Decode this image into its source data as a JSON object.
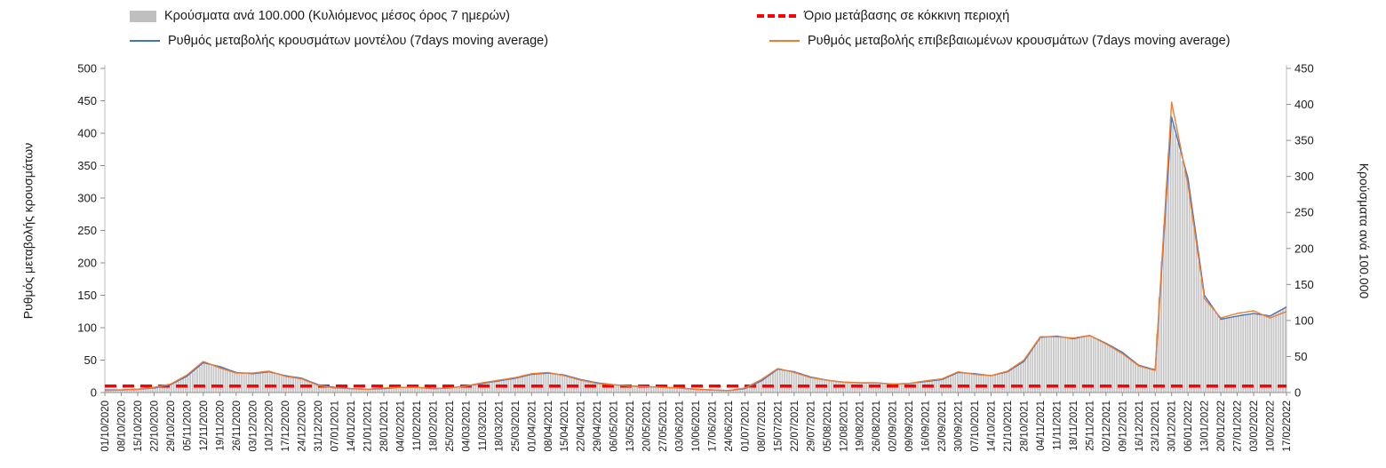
{
  "legend": {
    "items": [
      {
        "label": "Κρούσματα ανά 100.000 (Κυλιόμενος μέσος όρος 7 ημερών)",
        "swatch": "bar",
        "color": "#bfbfbf"
      },
      {
        "label": "Όριο μετάβασης σε κόκκινη περιοχή",
        "swatch": "dashed-line",
        "color": "#ff0000"
      },
      {
        "label": "Ρυθμός μεταβολής κρουσμάτων μοντέλου (7days moving average)",
        "swatch": "line",
        "color": "#4472c4"
      },
      {
        "label": "Ρυθμός μεταβολής επιβεβαιωμένων κρουσμάτων (7days moving average)",
        "swatch": "line",
        "color": "#ed7d31"
      }
    ]
  },
  "axes": {
    "left_label": "Ρυθμός μεταβολής κρουσμάτων",
    "right_label": "Κρούσματα ανά 100.000"
  },
  "chart_data": {
    "type": "bar",
    "subtype": "combo-bar-line",
    "grid": false,
    "legend_position": "top",
    "x": [
      "01/10/2020",
      "08/10/2020",
      "15/10/2020",
      "22/10/2020",
      "29/10/2020",
      "05/11/2020",
      "12/11/2020",
      "19/11/2020",
      "26/11/2020",
      "03/12/2020",
      "10/12/2020",
      "17/12/2020",
      "24/12/2020",
      "31/12/2020",
      "07/01/2021",
      "14/01/2021",
      "21/01/2021",
      "28/01/2021",
      "04/02/2021",
      "11/02/2021",
      "18/02/2021",
      "25/02/2021",
      "04/03/2021",
      "11/03/2021",
      "18/03/2021",
      "25/03/2021",
      "01/04/2021",
      "08/04/2021",
      "15/04/2021",
      "22/04/2021",
      "29/04/2021",
      "06/05/2021",
      "13/05/2021",
      "20/05/2021",
      "27/05/2021",
      "03/06/2021",
      "10/06/2021",
      "17/06/2021",
      "24/06/2021",
      "01/07/2021",
      "08/07/2021",
      "15/07/2021",
      "22/07/2021",
      "29/07/2021",
      "05/08/2021",
      "12/08/2021",
      "19/08/2021",
      "26/08/2021",
      "02/09/2021",
      "09/09/2021",
      "16/09/2021",
      "23/09/2021",
      "30/09/2021",
      "07/10/2021",
      "14/10/2021",
      "21/10/2021",
      "28/10/2021",
      "04/11/2021",
      "11/11/2021",
      "18/11/2021",
      "25/11/2021",
      "02/12/2021",
      "09/12/2021",
      "16/12/2021",
      "23/12/2021",
      "30/12/2021",
      "06/01/2022",
      "13/01/2022",
      "20/01/2022",
      "27/01/2022",
      "03/02/2022",
      "10/02/2022",
      "17/02/2022"
    ],
    "left_axis": {
      "min": 0,
      "max": 500,
      "ticks": [
        0,
        50,
        100,
        150,
        200,
        250,
        300,
        350,
        400,
        450,
        500
      ]
    },
    "right_axis": {
      "min": 0,
      "max": 450,
      "ticks": [
        0,
        50,
        100,
        150,
        200,
        250,
        300,
        350,
        400,
        450
      ]
    },
    "series": {
      "bars": {
        "name": "Κρούσματα ανά 100.000 (Κυλιόμενος μέσος όρος 7 ημερών)",
        "type": "bar",
        "axis": "right",
        "color": "#c6c6c6",
        "values": [
          4,
          4,
          5,
          6,
          11,
          22,
          41,
          36,
          28,
          26,
          29,
          23,
          20,
          11,
          7,
          5,
          5,
          5,
          7,
          7,
          5,
          6,
          9,
          13,
          16,
          20,
          25,
          27,
          24,
          18,
          14,
          11,
          9,
          8,
          7,
          6,
          5,
          4,
          3,
          5,
          16,
          32,
          29,
          22,
          17,
          14,
          14,
          14,
          12,
          13,
          15,
          18,
          28,
          26,
          23,
          29,
          43,
          77,
          78,
          75,
          79,
          68,
          56,
          38,
          32,
          383,
          297,
          135,
          102,
          106,
          110,
          106,
          119
        ]
      },
      "model": {
        "name": "Ρυθμός μεταβολής κρουσμάτων μοντέλου (7days moving average)",
        "type": "line",
        "axis": "left",
        "color": "#4472c4",
        "values": [
          4,
          4,
          5,
          7,
          12,
          25,
          46,
          40,
          31,
          29,
          32,
          26,
          22,
          12,
          8,
          6,
          5,
          6,
          8,
          8,
          6,
          7,
          10,
          14,
          18,
          22,
          28,
          30,
          27,
          20,
          15,
          12,
          10,
          9,
          8,
          7,
          5,
          4,
          3,
          6,
          18,
          36,
          32,
          24,
          19,
          16,
          15,
          15,
          13,
          14,
          17,
          20,
          31,
          29,
          26,
          32,
          48,
          85,
          87,
          83,
          88,
          76,
          62,
          42,
          35,
          425,
          330,
          150,
          113,
          118,
          122,
          118,
          132
        ]
      },
      "confirmed": {
        "name": "Ρυθμός μεταβολής επιβεβαιωμένων κρουσμάτων (7days moving average)",
        "type": "line",
        "axis": "left",
        "color": "#ed7d31",
        "values": [
          3,
          4,
          5,
          8,
          13,
          27,
          48,
          38,
          30,
          30,
          33,
          25,
          21,
          11,
          7,
          6,
          5,
          7,
          8,
          8,
          6,
          7,
          10,
          15,
          19,
          23,
          29,
          31,
          26,
          19,
          14,
          12,
          10,
          9,
          8,
          7,
          5,
          4,
          3,
          7,
          20,
          37,
          31,
          23,
          19,
          16,
          15,
          15,
          13,
          14,
          18,
          21,
          32,
          28,
          26,
          33,
          50,
          86,
          86,
          84,
          88,
          75,
          60,
          41,
          34,
          448,
          320,
          145,
          115,
          122,
          126,
          115,
          125
        ]
      },
      "threshold": {
        "name": "Όριο μετάβασης σε κόκκινη περιοχή",
        "type": "dashed-line",
        "axis": "left",
        "color": "#ff0000",
        "value": 10
      }
    }
  }
}
